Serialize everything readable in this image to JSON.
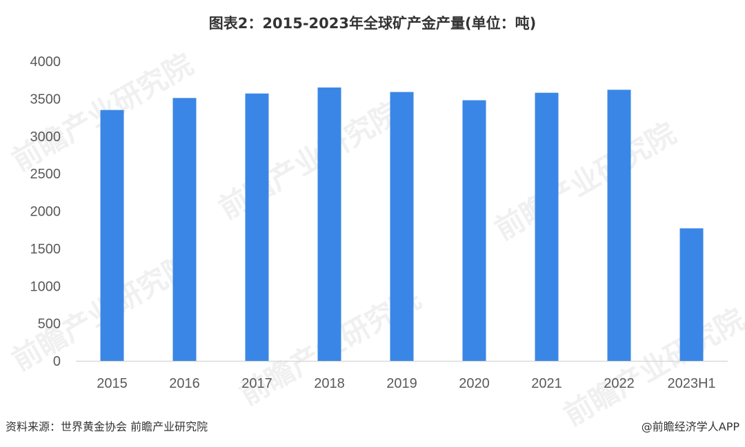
{
  "title": "图表2：2015-2023年全球矿产金产量(单位：吨)",
  "source": "资料来源：世界黄金协会 前瞻产业研究院",
  "brand": "@前瞻经济学人APP",
  "watermark": "前瞻产业研究院",
  "colors": {
    "bar": "#3a86e6",
    "axis": "#d9d9d9",
    "text": "#595959"
  },
  "chart_data": {
    "type": "bar",
    "categories": [
      "2015",
      "2016",
      "2017",
      "2018",
      "2019",
      "2020",
      "2021",
      "2022",
      "2023H1"
    ],
    "values": [
      3350,
      3510,
      3570,
      3650,
      3590,
      3480,
      3580,
      3620,
      1770
    ],
    "yticks": [
      0,
      500,
      1000,
      1500,
      2000,
      2500,
      3000,
      3500,
      4000
    ],
    "ylim": [
      0,
      4000
    ],
    "grid": false
  }
}
